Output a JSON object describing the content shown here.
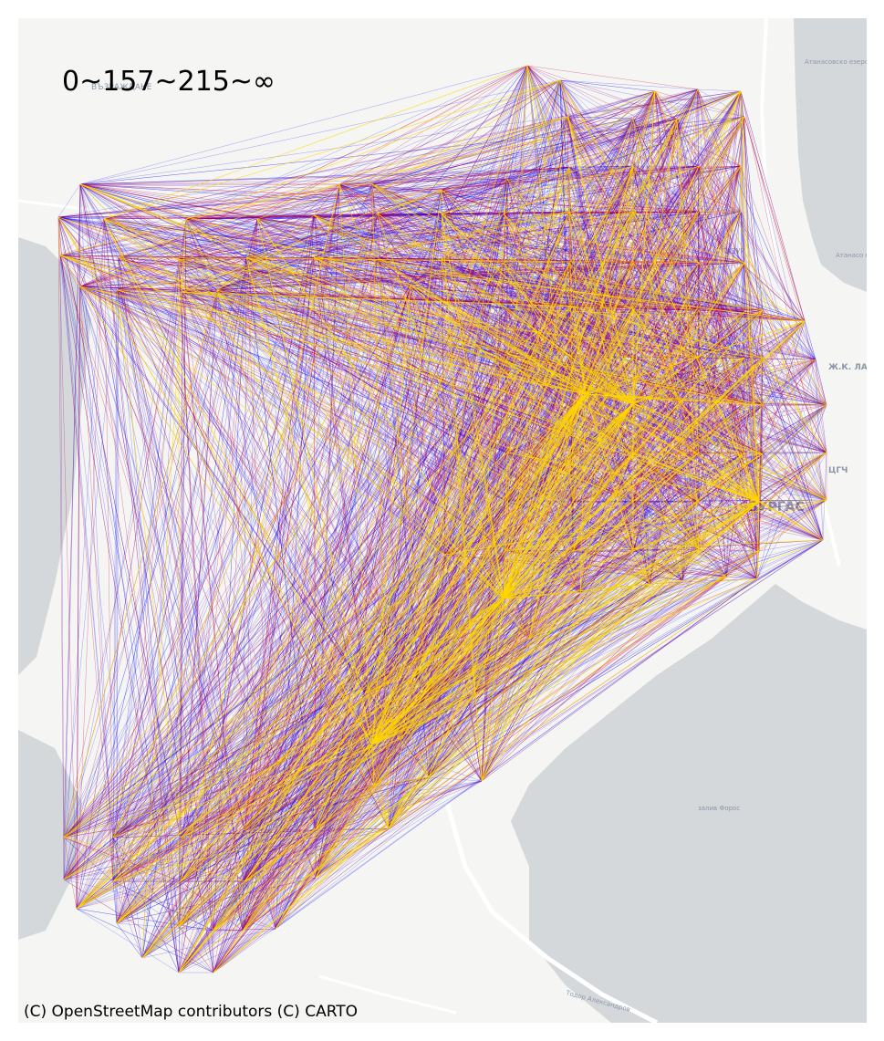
{
  "map": {
    "title": "0~157~215~∞",
    "attribution": "(C) OpenStreetMap contributors (C) CARTO",
    "colors": {
      "land": "#f5f5f3",
      "water": "#d4d8da",
      "road": "#ffffff",
      "low_band": "#0000ff",
      "mid_band": "#c8003c",
      "high_band": "#ffd700"
    },
    "place_labels": [
      {
        "text": "БУРГАС"
      },
      {
        "text": "Ж.К. ЛА"
      },
      {
        "text": "ЦГЧ"
      },
      {
        "text": "залив Форос"
      },
      {
        "text": "Атанасовско езеро"
      },
      {
        "text": "Атанасо езеро"
      },
      {
        "text": "Тодор Александров"
      },
      {
        "text": "ВЪЗРАЖДАНЕ"
      },
      {
        "text": "ЛАЗУР"
      }
    ]
  }
}
